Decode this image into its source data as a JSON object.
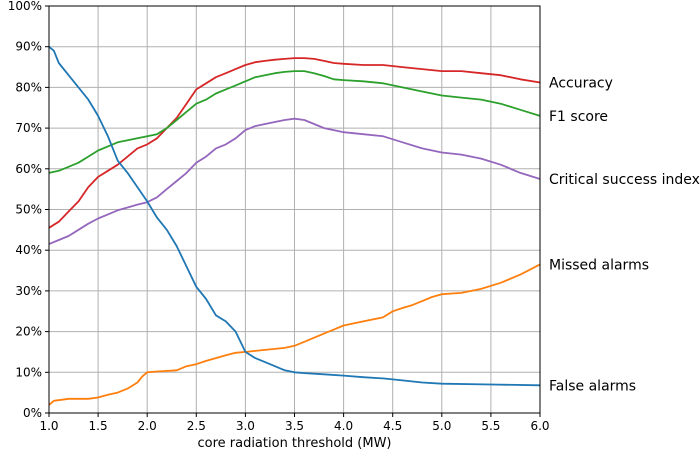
{
  "chart_data": {
    "type": "line",
    "title": "",
    "xlabel": "core radiation threshold (MW)",
    "ylabel": "",
    "xlim": [
      1.0,
      6.0
    ],
    "ylim": [
      0,
      100
    ],
    "grid": true,
    "legend": "labels at right end of each line",
    "xticks": [
      1.0,
      1.5,
      2.0,
      2.5,
      3.0,
      3.5,
      4.0,
      4.5,
      5.0,
      5.5,
      6.0
    ],
    "xtick_labels": [
      "1.0",
      "1.5",
      "2.0",
      "2.5",
      "3.0",
      "3.5",
      "4.0",
      "4.5",
      "5.0",
      "5.5",
      "6.0"
    ],
    "yticks": [
      0,
      10,
      20,
      30,
      40,
      50,
      60,
      70,
      80,
      90,
      100
    ],
    "ytick_labels": [
      "0%",
      "10%",
      "20%",
      "30%",
      "40%",
      "50%",
      "60%",
      "70%",
      "80%",
      "90%",
      "100%"
    ],
    "series": [
      {
        "name": "Accuracy",
        "color": "#d62728",
        "points": [
          [
            1.0,
            45.5
          ],
          [
            1.1,
            47
          ],
          [
            1.2,
            49.5
          ],
          [
            1.3,
            52
          ],
          [
            1.4,
            55.5
          ],
          [
            1.5,
            58
          ],
          [
            1.6,
            59.5
          ],
          [
            1.7,
            61
          ],
          [
            1.8,
            63
          ],
          [
            1.9,
            65
          ],
          [
            2.0,
            66
          ],
          [
            2.1,
            67.5
          ],
          [
            2.2,
            70
          ],
          [
            2.3,
            72.5
          ],
          [
            2.4,
            76
          ],
          [
            2.5,
            79.5
          ],
          [
            2.6,
            81
          ],
          [
            2.7,
            82.5
          ],
          [
            2.8,
            83.5
          ],
          [
            2.9,
            84.5
          ],
          [
            3.0,
            85.5
          ],
          [
            3.1,
            86.2
          ],
          [
            3.2,
            86.5
          ],
          [
            3.3,
            86.8
          ],
          [
            3.4,
            87
          ],
          [
            3.5,
            87.2
          ],
          [
            3.6,
            87.2
          ],
          [
            3.7,
            87
          ],
          [
            3.8,
            86.5
          ],
          [
            3.9,
            86
          ],
          [
            4.0,
            85.8
          ],
          [
            4.2,
            85.5
          ],
          [
            4.4,
            85.5
          ],
          [
            4.6,
            85
          ],
          [
            4.8,
            84.5
          ],
          [
            5.0,
            84
          ],
          [
            5.2,
            84
          ],
          [
            5.4,
            83.5
          ],
          [
            5.6,
            83
          ],
          [
            5.8,
            82
          ],
          [
            6.0,
            81.2
          ]
        ]
      },
      {
        "name": "F1 score",
        "color": "#2ca02c",
        "points": [
          [
            1.0,
            59
          ],
          [
            1.1,
            59.5
          ],
          [
            1.2,
            60.5
          ],
          [
            1.3,
            61.5
          ],
          [
            1.4,
            63
          ],
          [
            1.5,
            64.5
          ],
          [
            1.6,
            65.5
          ],
          [
            1.7,
            66.5
          ],
          [
            1.8,
            67
          ],
          [
            1.9,
            67.5
          ],
          [
            2.0,
            68
          ],
          [
            2.1,
            68.5
          ],
          [
            2.2,
            70
          ],
          [
            2.3,
            72
          ],
          [
            2.4,
            74
          ],
          [
            2.5,
            76
          ],
          [
            2.6,
            77
          ],
          [
            2.7,
            78.5
          ],
          [
            2.8,
            79.5
          ],
          [
            2.9,
            80.5
          ],
          [
            3.0,
            81.5
          ],
          [
            3.1,
            82.5
          ],
          [
            3.2,
            83
          ],
          [
            3.3,
            83.5
          ],
          [
            3.4,
            83.8
          ],
          [
            3.5,
            84
          ],
          [
            3.6,
            84
          ],
          [
            3.7,
            83.5
          ],
          [
            3.8,
            82.8
          ],
          [
            3.9,
            82
          ],
          [
            4.0,
            81.8
          ],
          [
            4.2,
            81.5
          ],
          [
            4.4,
            81
          ],
          [
            4.6,
            80
          ],
          [
            4.8,
            79
          ],
          [
            5.0,
            78
          ],
          [
            5.2,
            77.5
          ],
          [
            5.4,
            77
          ],
          [
            5.6,
            76
          ],
          [
            5.8,
            74.5
          ],
          [
            6.0,
            73
          ]
        ]
      },
      {
        "name": "Critical success index",
        "color": "#9467bd",
        "points": [
          [
            1.0,
            41.5
          ],
          [
            1.1,
            42.5
          ],
          [
            1.2,
            43.5
          ],
          [
            1.3,
            45
          ],
          [
            1.4,
            46.5
          ],
          [
            1.5,
            47.8
          ],
          [
            1.6,
            48.8
          ],
          [
            1.7,
            49.8
          ],
          [
            1.8,
            50.5
          ],
          [
            1.9,
            51.2
          ],
          [
            2.0,
            51.8
          ],
          [
            2.1,
            53
          ],
          [
            2.2,
            55
          ],
          [
            2.3,
            57
          ],
          [
            2.4,
            59
          ],
          [
            2.5,
            61.5
          ],
          [
            2.6,
            63
          ],
          [
            2.7,
            65
          ],
          [
            2.8,
            66
          ],
          [
            2.9,
            67.5
          ],
          [
            3.0,
            69.5
          ],
          [
            3.1,
            70.5
          ],
          [
            3.2,
            71
          ],
          [
            3.3,
            71.5
          ],
          [
            3.4,
            72
          ],
          [
            3.5,
            72.3
          ],
          [
            3.6,
            72
          ],
          [
            3.7,
            71
          ],
          [
            3.8,
            70
          ],
          [
            3.9,
            69.5
          ],
          [
            4.0,
            69
          ],
          [
            4.2,
            68.5
          ],
          [
            4.4,
            68
          ],
          [
            4.6,
            66.5
          ],
          [
            4.8,
            65
          ],
          [
            5.0,
            64
          ],
          [
            5.2,
            63.5
          ],
          [
            5.4,
            62.5
          ],
          [
            5.6,
            61
          ],
          [
            5.8,
            59
          ],
          [
            6.0,
            57.5
          ]
        ]
      },
      {
        "name": "Missed alarms",
        "color": "#ff7f0e",
        "points": [
          [
            1.0,
            2
          ],
          [
            1.05,
            3
          ],
          [
            1.2,
            3.5
          ],
          [
            1.4,
            3.5
          ],
          [
            1.5,
            3.8
          ],
          [
            1.6,
            4.5
          ],
          [
            1.7,
            5
          ],
          [
            1.8,
            6
          ],
          [
            1.9,
            7.5
          ],
          [
            1.95,
            9
          ],
          [
            2.0,
            10
          ],
          [
            2.1,
            10.2
          ],
          [
            2.3,
            10.5
          ],
          [
            2.4,
            11.5
          ],
          [
            2.5,
            12
          ],
          [
            2.6,
            12.8
          ],
          [
            2.7,
            13.5
          ],
          [
            2.8,
            14.2
          ],
          [
            2.9,
            14.8
          ],
          [
            3.0,
            15
          ],
          [
            3.2,
            15.5
          ],
          [
            3.4,
            16
          ],
          [
            3.5,
            16.5
          ],
          [
            3.6,
            17.5
          ],
          [
            3.7,
            18.5
          ],
          [
            3.8,
            19.5
          ],
          [
            3.9,
            20.5
          ],
          [
            4.0,
            21.5
          ],
          [
            4.2,
            22.5
          ],
          [
            4.4,
            23.5
          ],
          [
            4.5,
            25
          ],
          [
            4.6,
            25.8
          ],
          [
            4.7,
            26.5
          ],
          [
            4.8,
            27.5
          ],
          [
            4.9,
            28.5
          ],
          [
            5.0,
            29.2
          ],
          [
            5.2,
            29.5
          ],
          [
            5.4,
            30.5
          ],
          [
            5.6,
            32
          ],
          [
            5.8,
            34
          ],
          [
            6.0,
            36.5
          ]
        ]
      },
      {
        "name": "False alarms",
        "color": "#1f77b4",
        "points": [
          [
            1.0,
            90
          ],
          [
            1.05,
            89
          ],
          [
            1.1,
            86
          ],
          [
            1.2,
            83
          ],
          [
            1.3,
            80
          ],
          [
            1.4,
            77
          ],
          [
            1.5,
            73
          ],
          [
            1.6,
            68
          ],
          [
            1.7,
            62
          ],
          [
            1.8,
            59
          ],
          [
            1.9,
            55.5
          ],
          [
            2.0,
            52
          ],
          [
            2.1,
            48
          ],
          [
            2.2,
            45
          ],
          [
            2.3,
            41
          ],
          [
            2.4,
            36
          ],
          [
            2.5,
            31
          ],
          [
            2.6,
            28
          ],
          [
            2.7,
            24
          ],
          [
            2.8,
            22.5
          ],
          [
            2.9,
            20
          ],
          [
            3.0,
            15
          ],
          [
            3.1,
            13.5
          ],
          [
            3.2,
            12.5
          ],
          [
            3.3,
            11.5
          ],
          [
            3.4,
            10.5
          ],
          [
            3.5,
            10
          ],
          [
            3.6,
            9.8
          ],
          [
            3.8,
            9.5
          ],
          [
            4.0,
            9.2
          ],
          [
            4.2,
            8.8
          ],
          [
            4.4,
            8.5
          ],
          [
            4.6,
            8
          ],
          [
            4.8,
            7.5
          ],
          [
            5.0,
            7.2
          ],
          [
            5.5,
            7
          ],
          [
            6.0,
            6.8
          ]
        ]
      }
    ]
  }
}
